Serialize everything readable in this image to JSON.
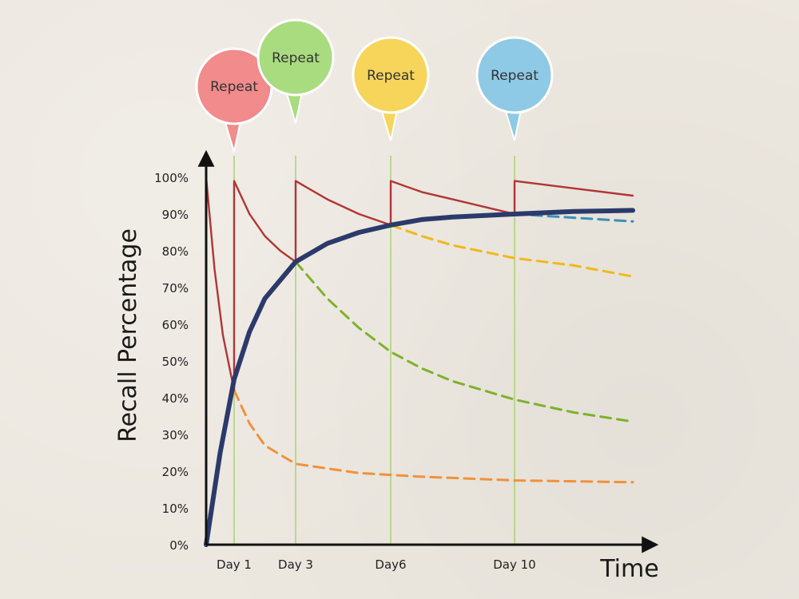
{
  "chart_data": {
    "type": "line",
    "title": "",
    "xlabel": "Time",
    "ylabel": "Recall Percentage",
    "ylim": [
      0,
      100
    ],
    "y_ticks": [
      "0%",
      "10%",
      "20%",
      "30%",
      "40%",
      "50%",
      "60%",
      "70%",
      "80%",
      "90%",
      "100%"
    ],
    "x_ticks": [
      {
        "label": "Day 1",
        "x": 1
      },
      {
        "label": "Day 3",
        "x": 3
      },
      {
        "label": "Day6",
        "x": 6
      },
      {
        "label": "Day 10",
        "x": 10
      }
    ],
    "xlim": [
      0,
      14
    ],
    "grid": false,
    "repeat_bubbles": [
      {
        "label": "Repeat",
        "x": 1,
        "color": "#f28b8b"
      },
      {
        "label": "Repeat",
        "x": 3,
        "color": "#a9dc7f"
      },
      {
        "label": "Repeat",
        "x": 6,
        "color": "#f7d55a"
      },
      {
        "label": "Repeat",
        "x": 10,
        "color": "#8ecae6"
      }
    ],
    "series": [
      {
        "role": "overall_retention",
        "color": "#2b3a6b",
        "points": [
          [
            0,
            0
          ],
          [
            0.5,
            25
          ],
          [
            1,
            45
          ],
          [
            1.5,
            58
          ],
          [
            2,
            67
          ],
          [
            3,
            77
          ],
          [
            4,
            82
          ],
          [
            5,
            85
          ],
          [
            6,
            87
          ],
          [
            7,
            88.5
          ],
          [
            8,
            89.2
          ],
          [
            10,
            90
          ],
          [
            12,
            90.7
          ],
          [
            14,
            91
          ]
        ]
      },
      {
        "role": "forgetting_repeat_path",
        "color": "#b23535",
        "points": [
          [
            0,
            100
          ],
          [
            0.3,
            75
          ],
          [
            0.6,
            57
          ],
          [
            1,
            42
          ],
          [
            1,
            99
          ],
          [
            1.5,
            90
          ],
          [
            2,
            84
          ],
          [
            2.5,
            80
          ],
          [
            3,
            77
          ],
          [
            3,
            99
          ],
          [
            4,
            94
          ],
          [
            5,
            90
          ],
          [
            6,
            87
          ],
          [
            6,
            99
          ],
          [
            7,
            96
          ],
          [
            8,
            94
          ],
          [
            9,
            92
          ],
          [
            10,
            90
          ],
          [
            10,
            99
          ],
          [
            12,
            97
          ],
          [
            14,
            95
          ]
        ]
      },
      {
        "role": "decay_without_repeat_after_day1",
        "color": "#f0913c",
        "dashed": true,
        "points": [
          [
            1,
            42
          ],
          [
            1.5,
            33
          ],
          [
            2,
            27
          ],
          [
            3,
            22
          ],
          [
            5,
            19.5
          ],
          [
            7,
            18.5
          ],
          [
            10,
            17.5
          ],
          [
            14,
            17
          ]
        ]
      },
      {
        "role": "decay_without_repeat_after_day3",
        "color": "#7fb12a",
        "dashed": true,
        "points": [
          [
            3,
            77
          ],
          [
            4,
            67
          ],
          [
            5,
            59
          ],
          [
            6,
            52.5
          ],
          [
            7,
            48
          ],
          [
            8,
            44.5
          ],
          [
            10,
            39.5
          ],
          [
            12,
            36
          ],
          [
            14,
            33.5
          ]
        ]
      },
      {
        "role": "decay_without_repeat_after_day6",
        "color": "#f2b81b",
        "dashed": true,
        "points": [
          [
            6,
            87
          ],
          [
            7,
            84
          ],
          [
            8,
            81.5
          ],
          [
            10,
            78
          ],
          [
            12,
            76
          ],
          [
            14,
            73
          ]
        ]
      },
      {
        "role": "decay_without_repeat_after_day10",
        "color": "#3b8fb8",
        "dashed": true,
        "points": [
          [
            10,
            90
          ],
          [
            12,
            89
          ],
          [
            14,
            88
          ]
        ]
      }
    ]
  }
}
